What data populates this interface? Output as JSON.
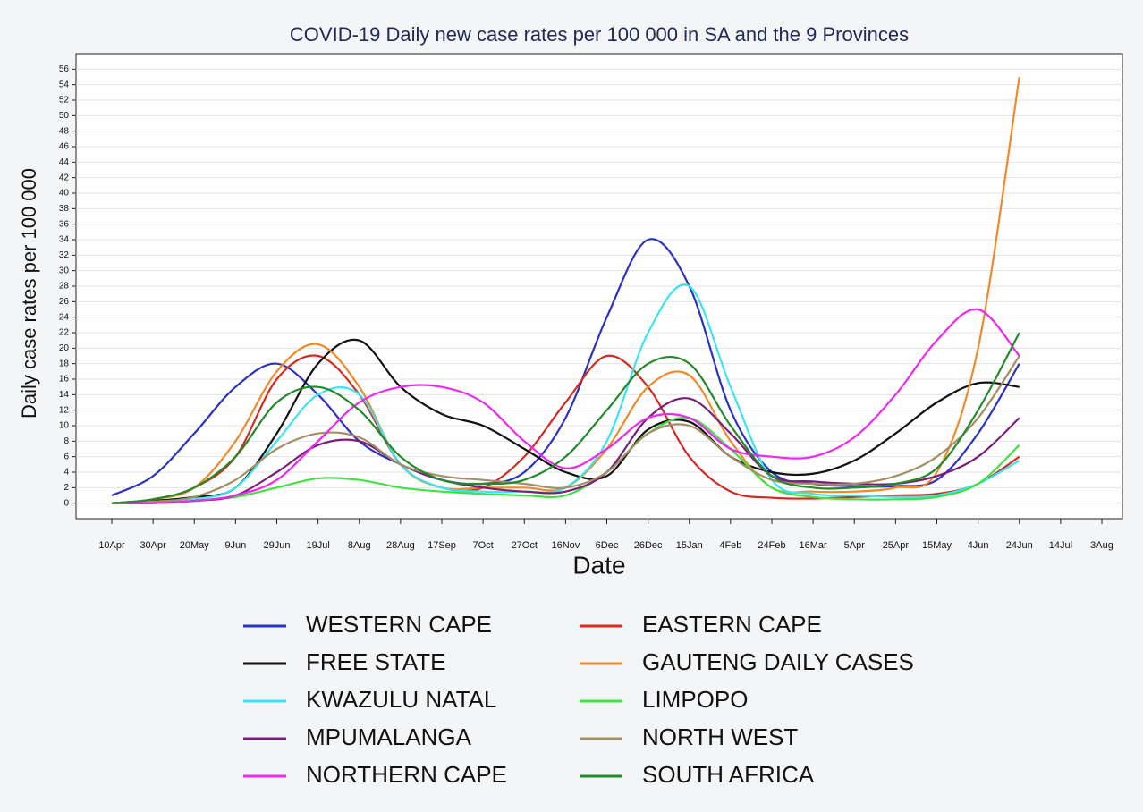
{
  "chart_data": {
    "type": "line",
    "title": "COVID-19 Daily new case rates  per 100 000 in SA and the 9 Provinces",
    "x_label": "Date",
    "y_label": "Daily case rates per 100 000",
    "categories": [
      "10Apr",
      "30Apr",
      "20May",
      "9Jun",
      "29Jun",
      "19Jul",
      "8Aug",
      "28Aug",
      "17Sep",
      "7Oct",
      "27Oct",
      "16Nov",
      "6Dec",
      "26Dec",
      "15Jan",
      "4Feb",
      "24Feb",
      "16Mar",
      "5Apr",
      "25Apr",
      "15May",
      "4Jun",
      "24Jun",
      "14Jul",
      "3Aug"
    ],
    "ylim": [
      -2,
      58
    ],
    "yticks": [
      0,
      2,
      4,
      6,
      8,
      10,
      12,
      14,
      16,
      18,
      20,
      22,
      24,
      26,
      28,
      30,
      32,
      34,
      36,
      38,
      40,
      42,
      44,
      46,
      48,
      50,
      52,
      54,
      56
    ],
    "grid": true,
    "series": [
      {
        "name": "WESTERN CAPE",
        "color": "#2a32c4",
        "values": [
          1,
          3.5,
          9,
          15,
          18,
          14,
          8,
          5,
          3,
          2.5,
          4,
          11,
          24,
          34,
          28,
          12,
          4,
          2.5,
          2.2,
          2.2,
          3,
          9,
          18,
          null,
          null
        ]
      },
      {
        "name": "EASTERN CAPE",
        "color": "#d42a22",
        "values": [
          0,
          0.5,
          2,
          6,
          16,
          19,
          14,
          5,
          2,
          2,
          6,
          13,
          19,
          15,
          6,
          1.5,
          0.7,
          0.6,
          0.8,
          1,
          1.2,
          2.5,
          6,
          null,
          null
        ]
      },
      {
        "name": "FREE STATE",
        "color": "#111111",
        "values": [
          0,
          0.3,
          0.8,
          2,
          9,
          18,
          21,
          15,
          11.5,
          10,
          7,
          4,
          3.5,
          9.5,
          10.5,
          6,
          4,
          3.8,
          5.5,
          9,
          13,
          15.5,
          15,
          null,
          null
        ]
      },
      {
        "name": "GAUTENG DAILY CASES",
        "color": "#ee8a2a",
        "values": [
          0,
          0.5,
          2,
          8,
          17,
          20.5,
          15,
          5,
          2,
          2,
          2,
          2,
          7,
          15,
          16.5,
          8,
          2,
          1.5,
          1.5,
          2,
          4,
          20,
          55,
          null,
          null
        ]
      },
      {
        "name": "KWAZULU NATAL",
        "color": "#3ae4f2",
        "values": [
          0,
          0.2,
          0.5,
          2,
          8,
          14,
          14,
          5,
          2,
          1.5,
          1.5,
          2,
          8,
          22,
          28,
          15,
          3,
          1.2,
          1,
          0.8,
          1,
          2.5,
          5.5,
          null,
          null
        ]
      },
      {
        "name": "LIMPOPO",
        "color": "#44e044",
        "values": [
          0,
          0,
          0.3,
          0.8,
          2,
          3.2,
          3,
          2,
          1.5,
          1.2,
          1,
          1,
          4,
          9,
          11,
          7,
          2,
          0.8,
          0.5,
          0.5,
          0.8,
          2.5,
          7.5,
          null,
          null
        ]
      },
      {
        "name": "MPUMALANGA",
        "color": "#7a1e78",
        "values": [
          0,
          0,
          0.3,
          1,
          4,
          7.5,
          8,
          5,
          3,
          2,
          1.5,
          1.5,
          4,
          11,
          13.5,
          9,
          3.5,
          2.8,
          2.5,
          2.5,
          3.5,
          6,
          11,
          null,
          null
        ]
      },
      {
        "name": "NORTH WEST",
        "color": "#a48e64",
        "values": [
          0,
          0.2,
          0.8,
          3,
          7,
          9,
          8.5,
          5,
          3.5,
          3,
          2.5,
          2,
          4,
          9,
          10,
          6,
          3,
          2.5,
          2.5,
          3.5,
          6,
          11,
          19,
          null,
          null
        ]
      },
      {
        "name": "NORTHERN CAPE",
        "color": "#ee28ee",
        "values": [
          0,
          0,
          0.3,
          1,
          3,
          8,
          13,
          15,
          15,
          13,
          8,
          4.5,
          7,
          11,
          11,
          7,
          6,
          6,
          8.5,
          14,
          21,
          25,
          19,
          null,
          null
        ]
      },
      {
        "name": "SOUTH AFRICA",
        "color": "#228a2a",
        "values": [
          0,
          0.5,
          2,
          6,
          13,
          15,
          12,
          6,
          3,
          2.5,
          3,
          6,
          12,
          18,
          18,
          10,
          3.5,
          2,
          2,
          2.5,
          4.5,
          12,
          22,
          null,
          null
        ]
      }
    ]
  }
}
